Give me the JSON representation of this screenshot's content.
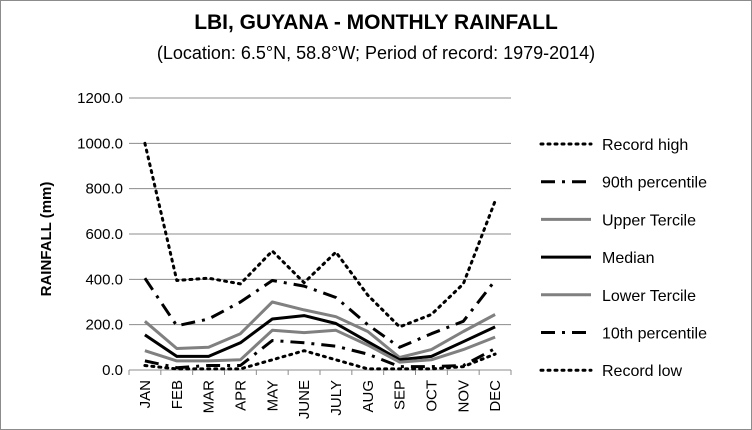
{
  "chart_data": {
    "type": "line",
    "title": "LBI, GUYANA - MONTHLY RAINFALL",
    "subtitle": "(Location: 6.5°N, 58.8°W; Period of record: 1979-2014)",
    "ylabel": "RAINFALL (mm)",
    "xlabel": "",
    "ylim": [
      0,
      1200
    ],
    "yticks": [
      "0.0",
      "200.0",
      "400.0",
      "600.0",
      "800.0",
      "1000.0",
      "1200.0"
    ],
    "categories": [
      "JAN",
      "FEB",
      "MAR",
      "APR",
      "MAY",
      "JUNE",
      "JULY",
      "AUG",
      "SEP",
      "OCT",
      "NOV",
      "DEC"
    ],
    "grid": true,
    "legend_position": "right",
    "series": [
      {
        "name": "Record high",
        "color": "#000000",
        "style": "dotted",
        "values": [
          1000,
          395,
          405,
          380,
          525,
          385,
          520,
          330,
          190,
          245,
          380,
          745
        ]
      },
      {
        "name": "90th percentile",
        "color": "#000000",
        "style": "dashdot",
        "values": [
          405,
          195,
          225,
          300,
          395,
          370,
          320,
          200,
          100,
          160,
          215,
          395
        ]
      },
      {
        "name": "Upper Tercile",
        "color": "#808080",
        "style": "solid",
        "values": [
          215,
          95,
          100,
          160,
          300,
          265,
          235,
          170,
          55,
          90,
          170,
          245
        ]
      },
      {
        "name": "Median",
        "color": "#000000",
        "style": "solid",
        "values": [
          155,
          60,
          60,
          120,
          225,
          240,
          205,
          125,
          45,
          60,
          125,
          190
        ]
      },
      {
        "name": "Lower Tercile",
        "color": "#808080",
        "style": "solid",
        "values": [
          85,
          40,
          40,
          45,
          175,
          165,
          175,
          110,
          35,
          45,
          90,
          145
        ]
      },
      {
        "name": "10th percentile",
        "color": "#000000",
        "style": "dashdot",
        "values": [
          40,
          10,
          20,
          20,
          130,
          120,
          105,
          70,
          15,
          15,
          20,
          95
        ]
      },
      {
        "name": "Record low",
        "color": "#000000",
        "style": "dotted",
        "values": [
          20,
          5,
          5,
          5,
          45,
          85,
          45,
          5,
          5,
          5,
          15,
          70
        ]
      }
    ]
  }
}
